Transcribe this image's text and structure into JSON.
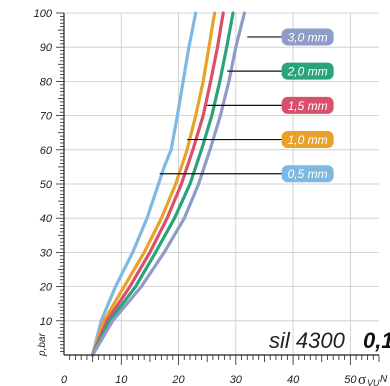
{
  "chart_data": {
    "type": "line",
    "xlabel": "σVU",
    "xlabel_main": "σ",
    "xlabel_sub": "VU",
    "xlabel_unit": "N",
    "ylabel": "p,bar",
    "xlim": [
      0,
      55
    ],
    "ylim": [
      0,
      100
    ],
    "x_ticks": [
      "0",
      "10",
      "20",
      "30",
      "40",
      "50"
    ],
    "y_ticks": [
      "10",
      "20",
      "30",
      "40",
      "50",
      "60",
      "70",
      "80",
      "90",
      "100"
    ],
    "grid": true,
    "annotation_main": "sil 4300",
    "annotation_bold": "0,1",
    "series": [
      {
        "name": "0,5 mm",
        "color": "#7fb8e0",
        "points": [
          [
            5,
            0
          ],
          [
            6.5,
            10
          ],
          [
            9,
            20
          ],
          [
            12,
            30
          ],
          [
            14.5,
            40
          ],
          [
            16.5,
            50
          ],
          [
            17.5,
            55
          ],
          [
            18.7,
            60
          ],
          [
            19.8,
            70
          ],
          [
            20.8,
            80
          ],
          [
            21.8,
            90
          ],
          [
            23,
            100
          ]
        ]
      },
      {
        "name": "1,0 mm",
        "color": "#e8a22a",
        "points": [
          [
            5,
            0
          ],
          [
            7,
            10
          ],
          [
            10.5,
            20
          ],
          [
            14,
            30
          ],
          [
            17,
            40
          ],
          [
            19.5,
            50
          ],
          [
            21.5,
            60
          ],
          [
            23,
            70
          ],
          [
            24.3,
            80
          ],
          [
            25.3,
            90
          ],
          [
            26.3,
            100
          ]
        ]
      },
      {
        "name": "1,5 mm",
        "color": "#d9506a",
        "points": [
          [
            5,
            0
          ],
          [
            7.5,
            10
          ],
          [
            11.5,
            20
          ],
          [
            15,
            30
          ],
          [
            18,
            40
          ],
          [
            20.5,
            50
          ],
          [
            22.5,
            60
          ],
          [
            24.3,
            70
          ],
          [
            25.6,
            80
          ],
          [
            26.8,
            90
          ],
          [
            27.8,
            100
          ]
        ]
      },
      {
        "name": "2,0 mm",
        "color": "#2aa37a",
        "points": [
          [
            5,
            0
          ],
          [
            8,
            10
          ],
          [
            12.5,
            20
          ],
          [
            16,
            30
          ],
          [
            19.3,
            40
          ],
          [
            22,
            50
          ],
          [
            24,
            60
          ],
          [
            25.8,
            70
          ],
          [
            27.2,
            80
          ],
          [
            28.4,
            90
          ],
          [
            29.5,
            100
          ]
        ]
      },
      {
        "name": "3,0 mm",
        "color": "#8f9bc8",
        "points": [
          [
            5,
            0
          ],
          [
            8.5,
            10
          ],
          [
            13.5,
            20
          ],
          [
            17.5,
            30
          ],
          [
            21,
            40
          ],
          [
            23.5,
            50
          ],
          [
            25.5,
            60
          ],
          [
            27.3,
            70
          ],
          [
            28.8,
            80
          ],
          [
            30,
            90
          ],
          [
            31.5,
            100
          ]
        ]
      }
    ],
    "legend": [
      {
        "label": "3,0 mm",
        "series": "3,0 mm",
        "y": 93,
        "line_from_x": 32
      },
      {
        "label": "2,0 mm",
        "series": "2,0 mm",
        "y": 83,
        "line_from_x": 28.5
      },
      {
        "label": "1,5 mm",
        "series": "1,5 mm",
        "y": 73,
        "line_from_x": 25
      },
      {
        "label": "1,0 mm",
        "series": "1,0 mm",
        "y": 63,
        "line_from_x": 21.5
      },
      {
        "label": "0,5 mm",
        "series": "0,5 mm",
        "y": 53,
        "line_from_x": 16.7
      }
    ]
  }
}
